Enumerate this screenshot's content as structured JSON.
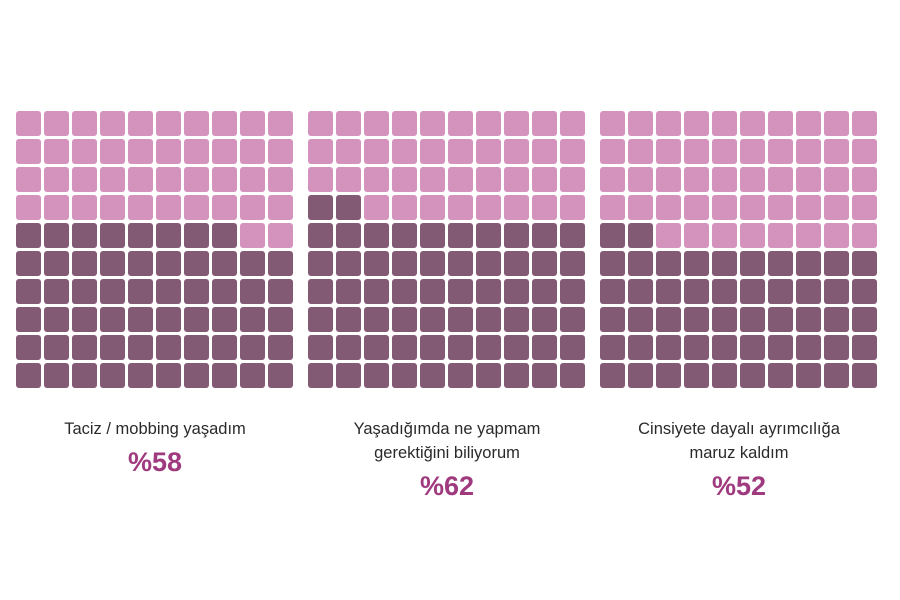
{
  "chart_data": {
    "type": "waffle",
    "grid": {
      "rows": 10,
      "cols": 10,
      "fill_order": "bottom-up, left-to-right within each row"
    },
    "colors": {
      "filled": "#835a73",
      "empty": "#d493bd",
      "value_text": "#a03a7e"
    },
    "charts": [
      {
        "label_lines": [
          "Taciz / mobbing yaşadım"
        ],
        "value_label": "%58",
        "percent": 58
      },
      {
        "label_lines": [
          "Yaşadığımda ne yapmam",
          "gerektiğini biliyorum"
        ],
        "value_label": "%62",
        "percent": 62
      },
      {
        "label_lines": [
          "Cinsiyete dayalı ayrımcılığa",
          "maruz kaldım"
        ],
        "value_label": "%52",
        "percent": 52
      }
    ]
  }
}
